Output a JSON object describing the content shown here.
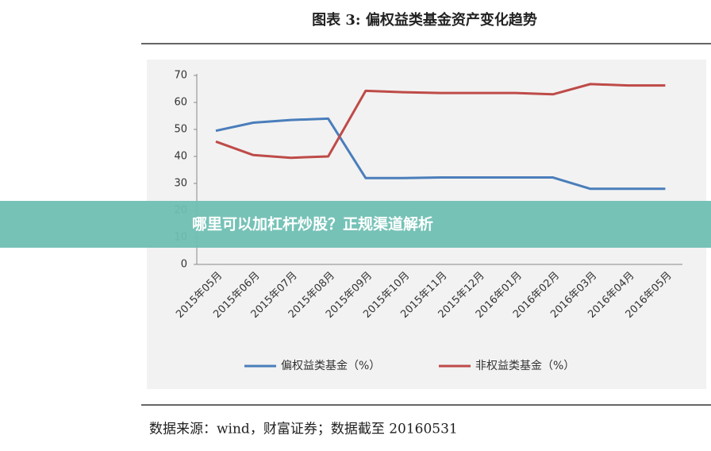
{
  "chart_data": {
    "type": "line",
    "title": "图表 3:  偏权益类基金资产变化趋势",
    "categories": [
      "2015年05月",
      "2015年06月",
      "2015年07月",
      "2015年08月",
      "2015年09月",
      "2015年10月",
      "2015年11月",
      "2015年12月",
      "2016年01月",
      "2016年02月",
      "2016年03月",
      "2016年04月",
      "2016年05月"
    ],
    "series": [
      {
        "name": "偏权益类基金（%）",
        "color": "#4a7ebb",
        "values": [
          49.5,
          52.5,
          53.5,
          54,
          32,
          32,
          32.2,
          32.2,
          32.2,
          32.2,
          28,
          28,
          28
        ]
      },
      {
        "name": "非权益类基金（%）",
        "color": "#be4b48",
        "values": [
          45.5,
          40.5,
          39.5,
          40,
          64.3,
          63.8,
          63.5,
          63.5,
          63.5,
          63,
          66.8,
          66.3,
          66.3
        ]
      }
    ],
    "ylim": [
      0,
      70
    ],
    "yticks": [
      0,
      10,
      20,
      30,
      40,
      50,
      60,
      70
    ],
    "grid": false,
    "legend": "bottom"
  },
  "source": "数据来源：wind，财富证券；数据截至 20160531",
  "banner": {
    "text": "哪里可以加杠杆炒股？正规渠道解析"
  }
}
